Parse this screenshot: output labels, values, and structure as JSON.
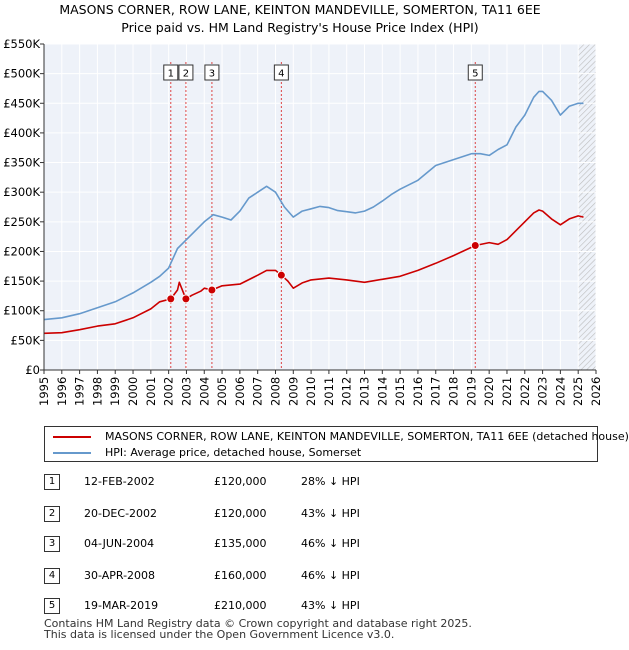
{
  "title": {
    "line1": "MASONS CORNER, ROW LANE, KEINTON MANDEVILLE, SOMERTON, TA11 6EE",
    "line2": "Price paid vs. HM Land Registry's House Price Index (HPI)"
  },
  "legend": {
    "property_label": "MASONS CORNER, ROW LANE, KEINTON MANDEVILLE, SOMERTON, TA11 6EE (detached house)",
    "hpi_label": "HPI: Average price, detached house, Somerset"
  },
  "sales": [
    {
      "num": "1",
      "date": "12-FEB-2002",
      "price": "£120,000",
      "hpi": "28% ↓ HPI"
    },
    {
      "num": "2",
      "date": "20-DEC-2002",
      "price": "£120,000",
      "hpi": "43% ↓ HPI"
    },
    {
      "num": "3",
      "date": "04-JUN-2004",
      "price": "£135,000",
      "hpi": "46% ↓ HPI"
    },
    {
      "num": "4",
      "date": "30-APR-2008",
      "price": "£160,000",
      "hpi": "46% ↓ HPI"
    },
    {
      "num": "5",
      "date": "19-MAR-2019",
      "price": "£210,000",
      "hpi": "43% ↓ HPI"
    }
  ],
  "footer": {
    "line1": "Contains HM Land Registry data © Crown copyright and database right 2025.",
    "line2": "This data is licensed under the Open Government Licence v3.0."
  },
  "colors": {
    "property": "#cc0000",
    "hpi": "#6699cc",
    "plot_bg": "#eef2f9",
    "grid": "#ffffff",
    "vline": "#dd4444"
  },
  "chart_data": {
    "type": "line",
    "title": "MASONS CORNER, ROW LANE, KEINTON MANDEVILLE, SOMERTON, TA11 6EE — Price paid vs. HM Land Registry's House Price Index (HPI)",
    "xlabel": "",
    "ylabel": "",
    "xlim": [
      1995,
      2026
    ],
    "ylim": [
      0,
      550000
    ],
    "x_ticks": [
      1995,
      1996,
      1997,
      1998,
      1999,
      2000,
      2001,
      2002,
      2003,
      2004,
      2005,
      2006,
      2007,
      2008,
      2009,
      2010,
      2011,
      2012,
      2013,
      2014,
      2015,
      2016,
      2017,
      2018,
      2019,
      2020,
      2021,
      2022,
      2023,
      2024,
      2025,
      2026
    ],
    "y_ticks": [
      0,
      50000,
      100000,
      150000,
      200000,
      250000,
      300000,
      350000,
      400000,
      450000,
      500000,
      550000
    ],
    "y_tick_labels": [
      "£0",
      "£50K",
      "£100K",
      "£150K",
      "£200K",
      "£250K",
      "£300K",
      "£350K",
      "£400K",
      "£450K",
      "£500K",
      "£550K"
    ],
    "series": [
      {
        "name": "MASONS CORNER, ROW LANE, KEINTON MANDEVILLE, SOMERTON, TA11 6EE (detached house)",
        "x": [
          1995.0,
          1996.0,
          1997.0,
          1998.0,
          1999.0,
          2000.0,
          2001.0,
          2001.5,
          2002.12,
          2002.5,
          2002.6,
          2002.97,
          2003.3,
          2003.8,
          2004.0,
          2004.43,
          2005.0,
          2006.0,
          2007.0,
          2007.5,
          2008.0,
          2008.33,
          2008.7,
          2009.0,
          2009.5,
          2010.0,
          2011.0,
          2012.0,
          2013.0,
          2014.0,
          2015.0,
          2016.0,
          2017.0,
          2018.0,
          2019.22,
          2020.0,
          2020.5,
          2021.0,
          2021.5,
          2022.0,
          2022.5,
          2022.8,
          2023.0,
          2023.5,
          2024.0,
          2024.5,
          2025.0,
          2025.3
        ],
        "values": [
          62000,
          63000,
          68000,
          74000,
          78000,
          88000,
          103000,
          115000,
          120000,
          135000,
          148000,
          120000,
          126000,
          133000,
          138000,
          135000,
          142000,
          145000,
          160000,
          168000,
          168000,
          160000,
          150000,
          138000,
          147000,
          152000,
          155000,
          152000,
          148000,
          153000,
          158000,
          168000,
          180000,
          193000,
          210000,
          215000,
          212000,
          220000,
          235000,
          250000,
          265000,
          270000,
          268000,
          255000,
          245000,
          255000,
          260000,
          258000
        ]
      },
      {
        "name": "HPI: Average price, detached house, Somerset",
        "x": [
          1995.0,
          1996.0,
          1997.0,
          1998.0,
          1999.0,
          2000.0,
          2001.0,
          2001.5,
          2002.0,
          2002.5,
          2003.0,
          2003.5,
          2004.0,
          2004.5,
          2005.0,
          2005.5,
          2006.0,
          2006.5,
          2007.0,
          2007.5,
          2008.0,
          2008.5,
          2009.0,
          2009.5,
          2010.0,
          2010.5,
          2011.0,
          2011.5,
          2012.0,
          2012.5,
          2013.0,
          2013.5,
          2014.0,
          2014.5,
          2015.0,
          2016.0,
          2017.0,
          2018.0,
          2019.0,
          2019.5,
          2020.0,
          2020.5,
          2021.0,
          2021.5,
          2022.0,
          2022.5,
          2022.8,
          2023.0,
          2023.5,
          2024.0,
          2024.5,
          2025.0,
          2025.3
        ],
        "values": [
          85000,
          88000,
          95000,
          105000,
          115000,
          130000,
          148000,
          158000,
          172000,
          205000,
          220000,
          235000,
          250000,
          262000,
          258000,
          253000,
          268000,
          290000,
          300000,
          310000,
          300000,
          275000,
          258000,
          268000,
          272000,
          276000,
          274000,
          269000,
          267000,
          265000,
          268000,
          275000,
          285000,
          296000,
          305000,
          320000,
          345000,
          355000,
          365000,
          365000,
          362000,
          372000,
          380000,
          410000,
          430000,
          460000,
          470000,
          470000,
          455000,
          430000,
          445000,
          450000,
          450000
        ]
      }
    ],
    "markers": [
      {
        "label": "1",
        "x": 2002.12,
        "value": 120000
      },
      {
        "label": "2",
        "x": 2002.97,
        "value": 120000
      },
      {
        "label": "3",
        "x": 2004.43,
        "value": 135000
      },
      {
        "label": "4",
        "x": 2008.33,
        "value": 160000
      },
      {
        "label": "5",
        "x": 2019.22,
        "value": 210000
      }
    ],
    "hatch_from": 2025.0
  }
}
